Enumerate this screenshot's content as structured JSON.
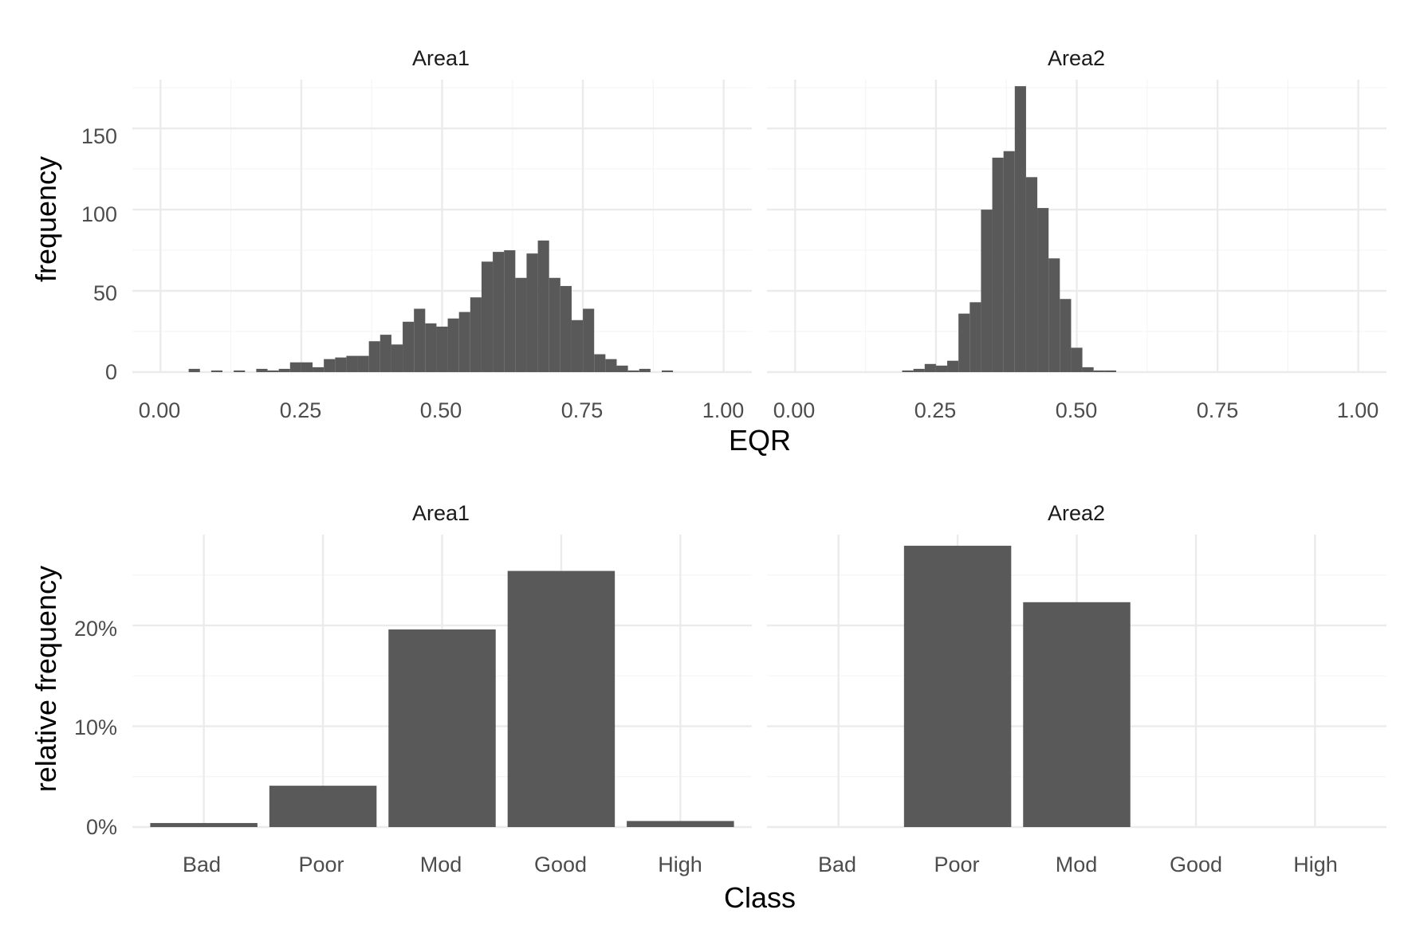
{
  "chart_data": [
    {
      "type": "bar",
      "subtype": "histogram",
      "ylabel": "frequency",
      "xlabel": "EQR",
      "xlim": [
        -0.05,
        1.05
      ],
      "ylim": [
        0,
        180
      ],
      "x_ticks": [
        "0.00",
        "0.25",
        "0.50",
        "0.75",
        "1.00"
      ],
      "y_ticks": [
        "0",
        "50",
        "100",
        "150"
      ],
      "bin_width": 0.02,
      "grid": true,
      "color": "#595959",
      "panels": [
        {
          "label": "Area1",
          "bins": [
            {
              "x": 0.06,
              "y": 2
            },
            {
              "x": 0.1,
              "y": 1
            },
            {
              "x": 0.14,
              "y": 1
            },
            {
              "x": 0.18,
              "y": 2
            },
            {
              "x": 0.2,
              "y": 1
            },
            {
              "x": 0.22,
              "y": 2
            },
            {
              "x": 0.24,
              "y": 6
            },
            {
              "x": 0.26,
              "y": 6
            },
            {
              "x": 0.28,
              "y": 3
            },
            {
              "x": 0.3,
              "y": 8
            },
            {
              "x": 0.32,
              "y": 9
            },
            {
              "x": 0.34,
              "y": 10
            },
            {
              "x": 0.36,
              "y": 10
            },
            {
              "x": 0.38,
              "y": 19
            },
            {
              "x": 0.4,
              "y": 23
            },
            {
              "x": 0.42,
              "y": 17
            },
            {
              "x": 0.44,
              "y": 31
            },
            {
              "x": 0.46,
              "y": 39
            },
            {
              "x": 0.48,
              "y": 30
            },
            {
              "x": 0.5,
              "y": 28
            },
            {
              "x": 0.52,
              "y": 33
            },
            {
              "x": 0.54,
              "y": 37
            },
            {
              "x": 0.56,
              "y": 46
            },
            {
              "x": 0.58,
              "y": 68
            },
            {
              "x": 0.6,
              "y": 74
            },
            {
              "x": 0.62,
              "y": 75
            },
            {
              "x": 0.64,
              "y": 58
            },
            {
              "x": 0.66,
              "y": 73
            },
            {
              "x": 0.68,
              "y": 81
            },
            {
              "x": 0.7,
              "y": 58
            },
            {
              "x": 0.72,
              "y": 53
            },
            {
              "x": 0.74,
              "y": 32
            },
            {
              "x": 0.76,
              "y": 39
            },
            {
              "x": 0.78,
              "y": 11
            },
            {
              "x": 0.8,
              "y": 8
            },
            {
              "x": 0.82,
              "y": 4
            },
            {
              "x": 0.84,
              "y": 1
            },
            {
              "x": 0.86,
              "y": 2
            },
            {
              "x": 0.9,
              "y": 1
            }
          ]
        },
        {
          "label": "Area2",
          "bins": [
            {
              "x": 0.2,
              "y": 1
            },
            {
              "x": 0.22,
              "y": 2
            },
            {
              "x": 0.24,
              "y": 5
            },
            {
              "x": 0.26,
              "y": 4
            },
            {
              "x": 0.28,
              "y": 7
            },
            {
              "x": 0.3,
              "y": 36
            },
            {
              "x": 0.32,
              "y": 43
            },
            {
              "x": 0.34,
              "y": 100
            },
            {
              "x": 0.36,
              "y": 132
            },
            {
              "x": 0.38,
              "y": 136
            },
            {
              "x": 0.4,
              "y": 176
            },
            {
              "x": 0.42,
              "y": 120
            },
            {
              "x": 0.44,
              "y": 101
            },
            {
              "x": 0.46,
              "y": 70
            },
            {
              "x": 0.48,
              "y": 45
            },
            {
              "x": 0.5,
              "y": 15
            },
            {
              "x": 0.52,
              "y": 3
            },
            {
              "x": 0.54,
              "y": 1
            },
            {
              "x": 0.56,
              "y": 1
            }
          ]
        }
      ]
    },
    {
      "type": "bar",
      "ylabel": "relative frequency",
      "xlabel": "Class",
      "categories": [
        "Bad",
        "Poor",
        "Mod",
        "Good",
        "High"
      ],
      "ylim": [
        0,
        29
      ],
      "y_ticks": [
        "0%",
        "10%",
        "20%"
      ],
      "grid": true,
      "color": "#595959",
      "panels": [
        {
          "label": "Area1",
          "values": [
            0.4,
            4.1,
            19.6,
            25.4,
            0.6
          ]
        },
        {
          "label": "Area2",
          "values": [
            0,
            27.9,
            22.3,
            0,
            0
          ]
        }
      ]
    }
  ]
}
